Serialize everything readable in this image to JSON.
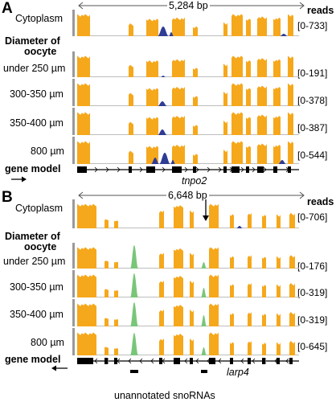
{
  "colors": {
    "exon_bar": "#f5a81c",
    "snorna_bar": "#79c679",
    "other_bar": "#2f3c94",
    "sidebar": "#9a9a9a",
    "baseline": "#bdbdbd"
  },
  "panelA": {
    "letter": "A",
    "span_label": "5,284 bp",
    "reads_header": "reads",
    "tracks": [
      {
        "label": "Cytoplasm",
        "range": "[0-733]"
      },
      {
        "label": "under 250 µm",
        "range": "[0-191]"
      },
      {
        "label": "300-350 µm",
        "range": "[0-378]"
      },
      {
        "label": "350-400 µm",
        "range": "[0-387]"
      },
      {
        "label": "800 µm",
        "range": "[0-544]"
      }
    ],
    "section_header_line1": "Diameter of",
    "section_header_line2": "oocyte",
    "gene_model_label": "gene model",
    "gene_name": "tnpo2",
    "direction_icon": "right-arrow-icon"
  },
  "panelB": {
    "letter": "B",
    "span_label": "6,648 bp",
    "reads_header": "reads",
    "tracks": [
      {
        "label": "Cytoplasm",
        "range": "[0-706]"
      },
      {
        "label": "under 250 µm",
        "range": "[0-176]"
      },
      {
        "label": "300-350 µm",
        "range": "[0-319]"
      },
      {
        "label": "350-400 µm",
        "range": "[0-319]"
      },
      {
        "label": "800 µm",
        "range": "[0-645]"
      }
    ],
    "section_header_line1": "Diameter of",
    "section_header_line2": "oocyte",
    "gene_model_label": "gene model",
    "gene_name": "larp4",
    "snorna_label": "unannotated snoRNAs",
    "direction_icon": "left-arrow-icon"
  }
}
